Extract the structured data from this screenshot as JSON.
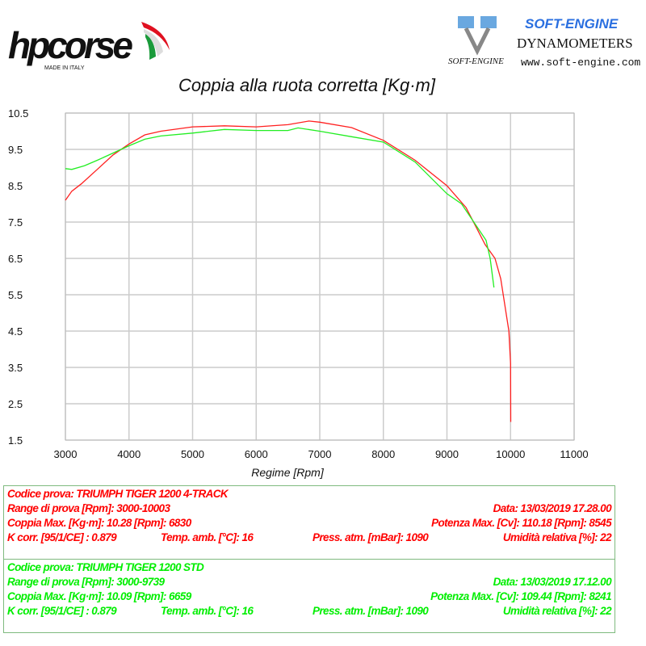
{
  "logos": {
    "left": "hpcorse MADE IN ITALY",
    "right_title": "SOFT-ENGINE",
    "right_sub": "DYNAMOMETERS",
    "right_url": "www.soft-engine.com"
  },
  "colors": {
    "run1": "#ff2020",
    "run2": "#22ee22",
    "grid": "#cccccc"
  },
  "chart_data": {
    "type": "line",
    "title": "Coppia alla ruota corretta [Kg·m]",
    "xlabel": "Regime [Rpm]",
    "ylabel": "",
    "xlim": [
      3000,
      11000
    ],
    "ylim": [
      1.5,
      10.5
    ],
    "grid": true,
    "xticks": [
      "3000",
      "4000",
      "5000",
      "6000",
      "7000",
      "8000",
      "9000",
      "10000",
      "11000"
    ],
    "yticks": [
      "10.5",
      "9.5",
      "8.5",
      "7.5",
      "6.5",
      "5.5",
      "4.5",
      "3.5",
      "2.5",
      "1.5"
    ],
    "series": [
      {
        "name": "TRIUMPH TIGER 1200 4-TRACK",
        "color": "#ff2020",
        "x": [
          3000,
          3100,
          3250,
          3500,
          3750,
          4000,
          4250,
          4500,
          5000,
          5500,
          6000,
          6500,
          6830,
          7000,
          7500,
          8000,
          8500,
          9000,
          9300,
          9600,
          9756,
          9846,
          9974,
          10000,
          10003
        ],
        "y": [
          8.1,
          8.35,
          8.55,
          8.95,
          9.35,
          9.65,
          9.9,
          10.0,
          10.12,
          10.15,
          10.12,
          10.18,
          10.28,
          10.25,
          10.1,
          9.75,
          9.2,
          8.5,
          7.9,
          6.88,
          6.5,
          5.94,
          4.5,
          3.6,
          2.0
        ]
      },
      {
        "name": "TRIUMPH TIGER 1200 STD",
        "color": "#22ee22",
        "x": [
          3000,
          3100,
          3300,
          3500,
          3750,
          4000,
          4250,
          4500,
          5000,
          5500,
          6000,
          6500,
          6659,
          7000,
          7500,
          8000,
          8500,
          9000,
          9230,
          9615,
          9680,
          9739
        ],
        "y": [
          8.97,
          8.95,
          9.05,
          9.2,
          9.4,
          9.6,
          9.78,
          9.87,
          9.95,
          10.05,
          10.02,
          10.02,
          10.09,
          10.0,
          9.85,
          9.7,
          9.15,
          8.28,
          8.0,
          7.0,
          6.5,
          5.7
        ]
      }
    ]
  },
  "runs": [
    {
      "codice": "Codice prova: TRIUMPH TIGER 1200 4-TRACK",
      "range": "Range di prova [Rpm]: 3000-10003",
      "data": "Data: 13/03/2019   17.28.00",
      "coppia": "Coppia Max. [Kg·m]: 10.28   [Rpm]: 6830",
      "potenza": "Potenza Max. [Cv]: 110.18   [Rpm]: 8545",
      "kcorr": "K corr. [95/1/CE] : 0.879",
      "temp": "Temp. amb. [°C]: 16",
      "press": "Press. atm. [mBar]: 1090",
      "umid": "Umidità relativa [%]: 22"
    },
    {
      "codice": "Codice prova: TRIUMPH TIGER 1200 STD",
      "range": "Range di prova [Rpm]: 3000-9739",
      "data": "Data: 13/03/2019   17.12.00",
      "coppia": "Coppia Max. [Kg·m]: 10.09   [Rpm]: 6659",
      "potenza": "Potenza Max. [Cv]: 109.44   [Rpm]: 8241",
      "kcorr": "K corr. [95/1/CE] : 0.879",
      "temp": "Temp. amb. [°C]: 16",
      "press": "Press. atm. [mBar]: 1090",
      "umid": "Umidità relativa [%]: 22"
    }
  ]
}
